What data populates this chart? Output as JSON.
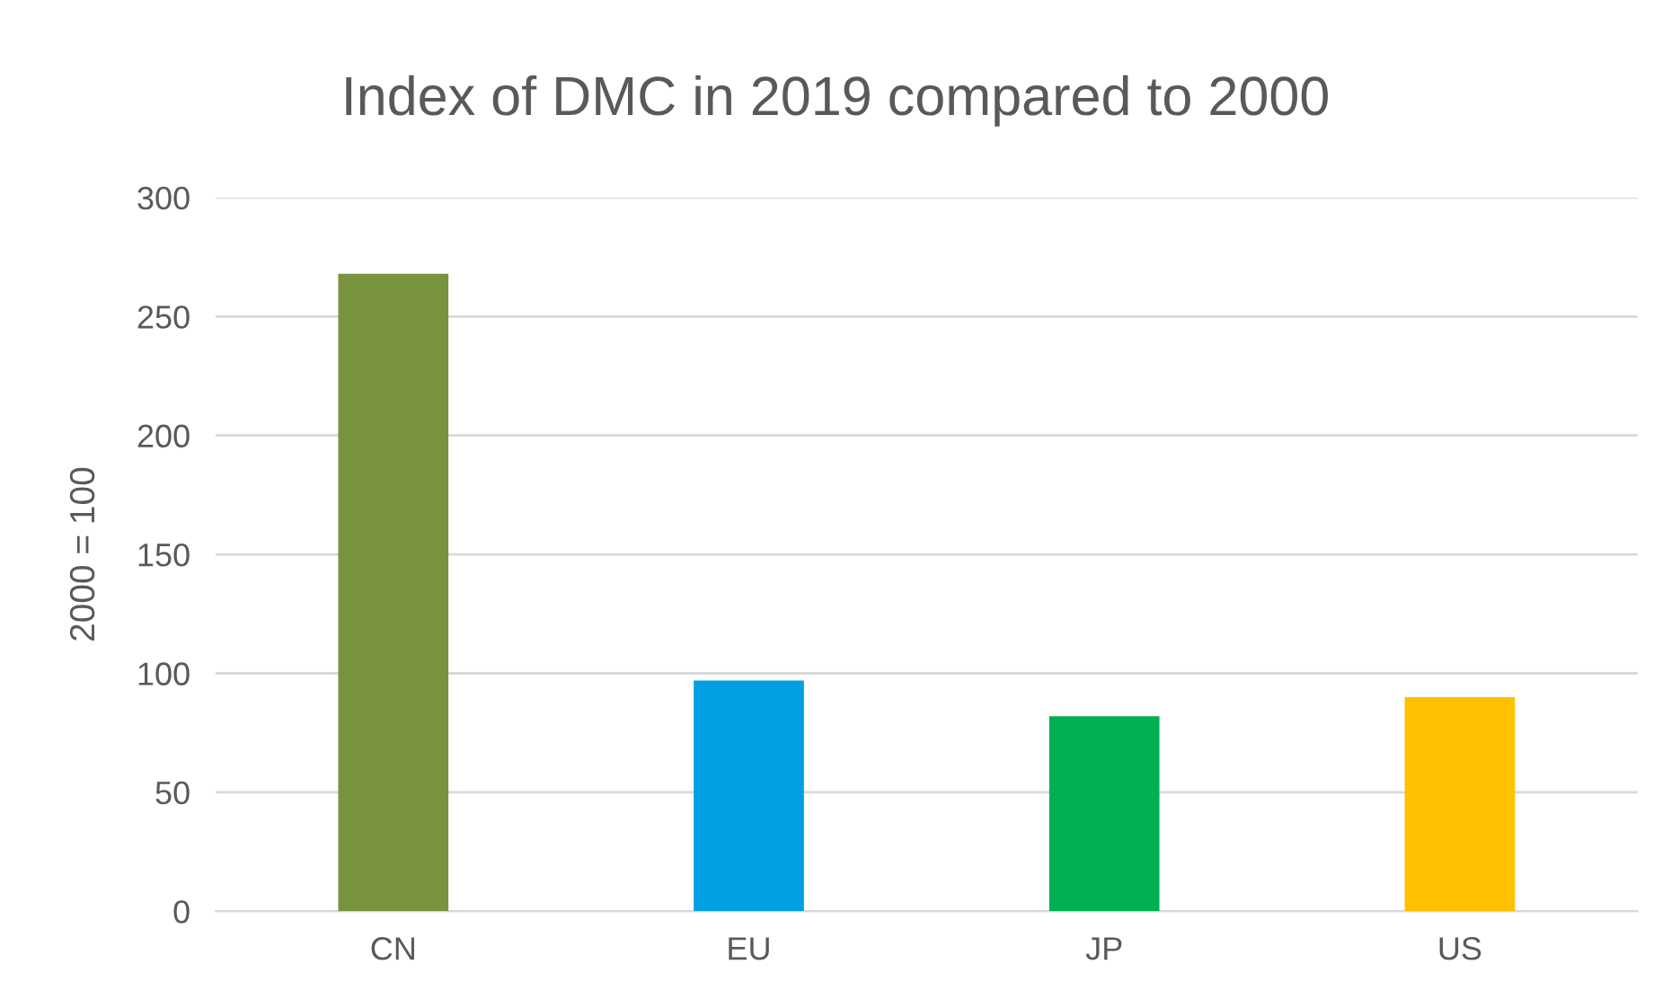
{
  "chart_data": {
    "type": "bar",
    "title": "Index of DMC in 2019 compared to 2000",
    "ylabel": "2000 = 100",
    "categories": [
      "CN",
      "EU",
      "JP",
      "US"
    ],
    "values": [
      268,
      97,
      82,
      90
    ],
    "colors": [
      "#77933c",
      "#00a0e3",
      "#00b050",
      "#ffc000"
    ],
    "ylim": [
      0,
      300
    ],
    "yticks": [
      0,
      50,
      100,
      150,
      200,
      250,
      300
    ],
    "grid": "y",
    "legend": false
  }
}
